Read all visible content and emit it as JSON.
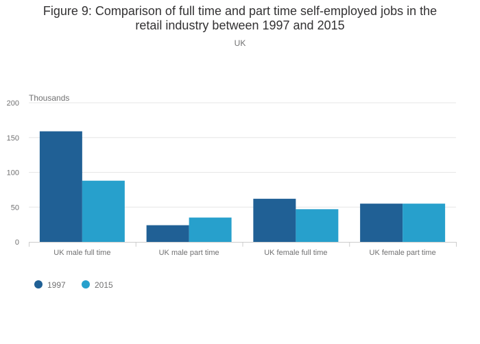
{
  "chart_data": {
    "type": "bar",
    "title_lines": [
      "Figure 9: Comparison of full time and part time self-employed jobs in the",
      "retail industry between 1997 and 2015"
    ],
    "subtitle": "UK",
    "ylabel": "Thousands",
    "xlabel": "",
    "ylim": [
      0,
      200
    ],
    "yticks": [
      0,
      50,
      100,
      150,
      200
    ],
    "grid": true,
    "legend_position": "bottom-left",
    "categories": [
      "UK male full time",
      "UK male part time",
      "UK female full time",
      "UK female part time"
    ],
    "series": [
      {
        "name": "1997",
        "color": "#206095",
        "values": [
          159,
          24,
          62,
          55
        ]
      },
      {
        "name": "2015",
        "color": "#27a0cc",
        "values": [
          88,
          35,
          47,
          55
        ]
      }
    ]
  }
}
